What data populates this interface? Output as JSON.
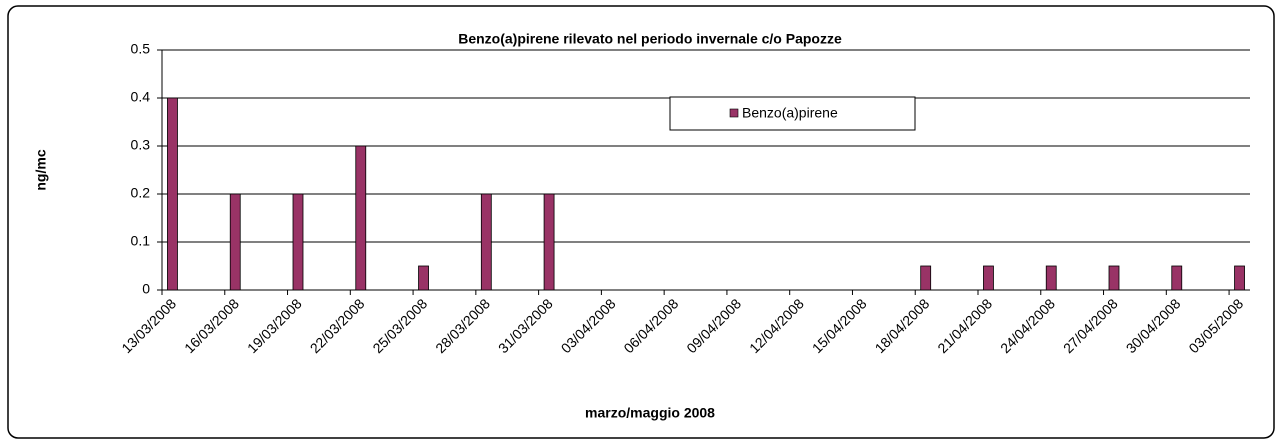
{
  "chart_data": {
    "type": "bar",
    "title": "Benzo(a)pirene rilevato nel periodo invernale c/o Papozze",
    "x_label": "marzo/maggio 2008",
    "y_label": "ng/mc",
    "categories": [
      "13/03/2008",
      null,
      null,
      "16/03/2008",
      null,
      null,
      "19/03/2008",
      null,
      null,
      "22/03/2008",
      null,
      null,
      "25/03/2008",
      null,
      null,
      "28/03/2008",
      null,
      null,
      "31/03/2008",
      null,
      null,
      "03/04/2008",
      null,
      null,
      "06/04/2008",
      null,
      null,
      "09/04/2008",
      null,
      null,
      "12/04/2008",
      null,
      null,
      "15/04/2008",
      null,
      null,
      "18/04/2008",
      null,
      null,
      "21/04/2008",
      null,
      null,
      "24/04/2008",
      null,
      null,
      "27/04/2008",
      null,
      null,
      "30/04/2008",
      null,
      null,
      "03/05/2008"
    ],
    "series": [
      {
        "name": "Benzo(a)pirene",
        "color": "#993366",
        "values": [
          0.4,
          null,
          null,
          0.2,
          null,
          null,
          0.2,
          null,
          null,
          0.3,
          null,
          null,
          0.05,
          null,
          null,
          0.2,
          null,
          null,
          0.2,
          null,
          null,
          0,
          null,
          null,
          0,
          null,
          null,
          0,
          null,
          null,
          0,
          null,
          null,
          0,
          null,
          null,
          0.05,
          null,
          null,
          0.05,
          null,
          null,
          0.05,
          null,
          null,
          0.05,
          null,
          null,
          0.05,
          null,
          null,
          0.05
        ]
      }
    ],
    "ylim": [
      0,
      0.5
    ],
    "yticks": [
      0,
      0.1,
      0.2,
      0.3,
      0.4,
      0.5
    ],
    "grid": true,
    "legend": "top-right"
  }
}
